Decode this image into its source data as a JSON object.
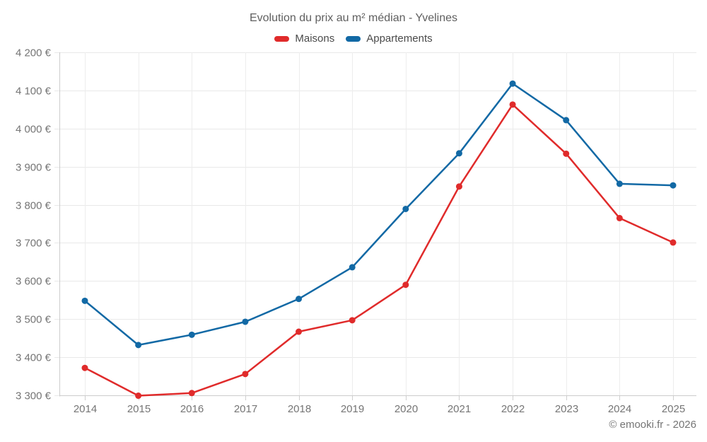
{
  "page": {
    "background": "#ffffff"
  },
  "chart_data": {
    "type": "line",
    "title": "Evolution du prix au m² médian - Yvelines",
    "categories": [
      "2014",
      "2015",
      "2016",
      "2017",
      "2018",
      "2019",
      "2020",
      "2021",
      "2022",
      "2023",
      "2024",
      "2025"
    ],
    "series": [
      {
        "name": "Maisons",
        "color": "#e02b2b",
        "values": [
          3372,
          3299,
          3306,
          3356,
          3467,
          3497,
          3590,
          3848,
          4063,
          3934,
          3765,
          3701
        ]
      },
      {
        "name": "Appartements",
        "color": "#1269a5",
        "values": [
          3548,
          3432,
          3459,
          3493,
          3553,
          3636,
          3789,
          3935,
          4118,
          4022,
          3855,
          3851
        ]
      }
    ],
    "xlabel": "",
    "ylabel": "",
    "ylim": [
      3300,
      4200
    ],
    "y_ticks": [
      3300,
      3400,
      3500,
      3600,
      3700,
      3800,
      3900,
      4000,
      4100,
      4200
    ],
    "y_tick_labels": [
      "3 300 €",
      "3 400 €",
      "3 500 €",
      "3 600 €",
      "3 700 €",
      "3 800 €",
      "3 900 €",
      "4 000 €",
      "4 100 €",
      "4 200 €"
    ],
    "grid": true,
    "legend_position": "top",
    "attribution": "© emooki.fr - 2026"
  }
}
